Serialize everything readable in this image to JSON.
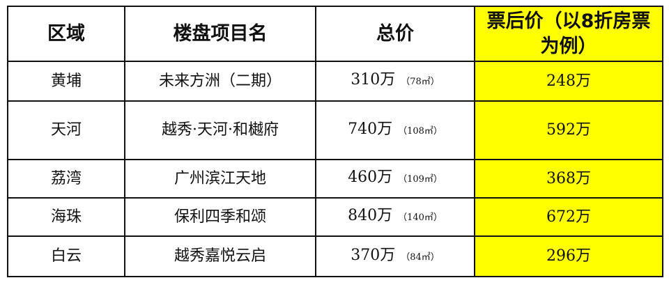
{
  "colors": {
    "highlight": "#ffff00",
    "border": "#111111"
  },
  "headers": [
    "区域",
    "楼盘项目名",
    "总价",
    "票后价（以8折房票为例）"
  ],
  "rows": [
    {
      "district": "黄埔",
      "project": "未来方洲（二期）",
      "price": "310万",
      "area": "（78㎡）",
      "after": "248万"
    },
    {
      "district": "天河",
      "project": "越秀·天河·和樾府",
      "price": "740万",
      "area": "（108㎡）",
      "after": "592万"
    },
    {
      "district": "荔湾",
      "project": "广州滨江天地",
      "price": "460万",
      "area": "（109㎡）",
      "after": "368万"
    },
    {
      "district": "海珠",
      "project": "保利四季和颂",
      "price": "840万",
      "area": "（140㎡）",
      "after": "672万"
    },
    {
      "district": "白云",
      "project": "越秀嘉悦云启",
      "price": "370万",
      "area": "（84㎡）",
      "after": "296万"
    }
  ]
}
